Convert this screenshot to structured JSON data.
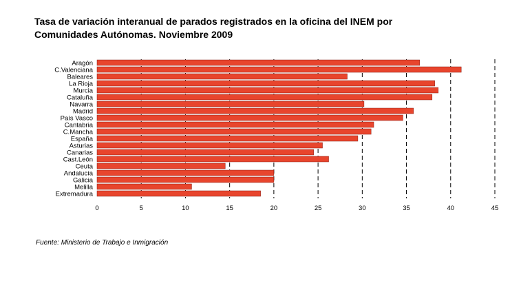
{
  "title_line1": "Tasa de variación interanual de parados registrados en la oficina del INEM por",
  "title_line2": "Comunidades Autónomas. Noviembre 2009",
  "source": "Fuente: Ministerio de Trabajo e Inmigración",
  "chart_data": {
    "type": "bar",
    "orientation": "horizontal",
    "title": "Tasa de variación interanual de parados registrados en la oficina del INEM por Comunidades Autónomas. Noviembre 2009",
    "xlabel": "",
    "ylabel": "",
    "xlim": [
      0,
      45
    ],
    "xticks": [
      0,
      5,
      10,
      15,
      20,
      25,
      30,
      35,
      40,
      45
    ],
    "grid": "vertical dashed",
    "bar_color": "#e8452d",
    "categories": [
      "Aragón",
      "C.Valenciana",
      "Baleares",
      "La Rioja",
      "Murcia",
      "Cataluña",
      "Navarra",
      "Madrid",
      "País Vasco",
      "Cantabria",
      "C.Mancha",
      "España",
      "Asturias",
      "Canarias",
      "Cast.León",
      "Ceuta",
      "Andalucía",
      "Galicia",
      "Melilla",
      "Extremadura"
    ],
    "values": [
      36.5,
      41.2,
      28.3,
      38.2,
      38.6,
      37.9,
      30.2,
      35.8,
      34.6,
      31.3,
      31.0,
      29.5,
      25.5,
      24.5,
      26.2,
      14.5,
      20.0,
      20.0,
      10.7,
      18.5
    ]
  }
}
